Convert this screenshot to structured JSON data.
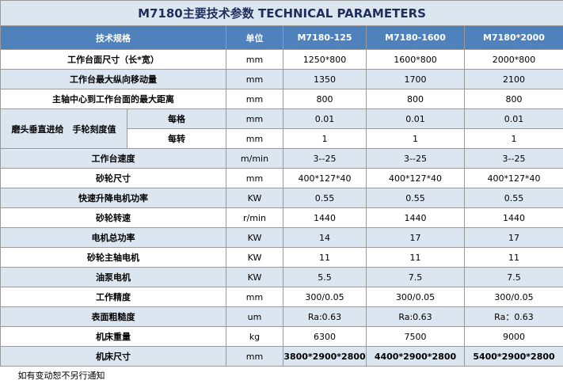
{
  "title": "M7180主要技术参数 TECHNICAL PARAMETERS",
  "header": [
    "技术规格",
    "单位",
    "M7180-125",
    "M7180-1600",
    "M7180*2000"
  ],
  "rows": [
    {
      "label": "工作台面尺寸（长*宽）",
      "unit": "mm",
      "values": [
        "1250*800",
        "1600*800",
        "2000*800"
      ]
    },
    {
      "label": "工作台最大纵向移动量",
      "unit": "mm",
      "values": [
        "1350",
        "1700",
        "2100"
      ]
    },
    {
      "label": "主轴中心到工作台面的最大距离",
      "unit": "mm",
      "values": [
        "800",
        "800",
        "800"
      ]
    },
    {
      "label": "磨头垂直进给　手轮刻度值",
      "subrows": [
        {
          "label": "每格",
          "unit": "mm",
          "values": [
            "0.01",
            "0.01",
            "0.01"
          ]
        },
        {
          "label": "每转",
          "unit": "mm",
          "values": [
            "1",
            "1",
            "1"
          ]
        }
      ]
    },
    {
      "label": "工作台速度",
      "unit": "m/min",
      "values": [
        "3--25",
        "3--25",
        "3--25"
      ]
    },
    {
      "label": "砂轮尺寸",
      "unit": "mm",
      "values": [
        "400*127*40",
        "400*127*40",
        "400*127*40"
      ]
    },
    {
      "label": "快速升降电机功率",
      "unit": "KW",
      "values": [
        "0.55",
        "0.55",
        "0.55"
      ]
    },
    {
      "label": "砂轮转速",
      "unit": "r/min",
      "values": [
        "1440",
        "1440",
        "1440"
      ]
    },
    {
      "label": "电机总功率",
      "unit": "KW",
      "values": [
        "14",
        "17",
        "17"
      ]
    },
    {
      "label": "砂轮主轴电机",
      "unit": "KW",
      "values": [
        "11",
        "11",
        "11"
      ]
    },
    {
      "label": "油泵电机",
      "unit": "KW",
      "values": [
        "5.5",
        "7.5",
        "7.5"
      ]
    },
    {
      "label": "工作精度",
      "unit": "mm",
      "values": [
        "300/0.05",
        "300/0.05",
        "300/0.05"
      ]
    },
    {
      "label": "表面粗糙度",
      "unit": "um",
      "values": [
        "Ra:0.63",
        "Ra:0.63",
        "Ra：0.63"
      ]
    },
    {
      "label": "机床重量",
      "unit": "kg",
      "values": [
        "6300",
        "7500",
        "9000"
      ]
    },
    {
      "label": "机床尺寸",
      "unit": "mm",
      "values": [
        "3800*2900*2800",
        "4400*2900*2800",
        "5400*2900*2800"
      ]
    }
  ],
  "footer": "如有变动恕不另行通知"
}
